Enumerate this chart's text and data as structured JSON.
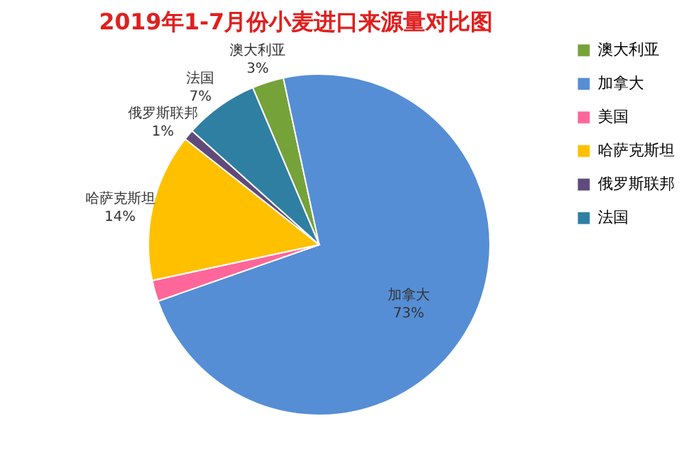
{
  "chart_data": {
    "type": "pie",
    "title": "2019年1-7月份小麦进口来源量对比图",
    "categories": [
      "澳大利亚",
      "加拿大",
      "美国",
      "哈萨克斯坦",
      "俄罗斯联邦",
      "法国"
    ],
    "values": [
      3,
      73,
      2,
      14,
      1,
      7
    ],
    "colors": [
      "#76a23a",
      "#558ed5",
      "#ff6699",
      "#ffc000",
      "#604a7b",
      "#2f7fa3"
    ],
    "value_labels": [
      "3%",
      "73%",
      null,
      "14%",
      "1%",
      "7%"
    ],
    "legend": "right"
  }
}
